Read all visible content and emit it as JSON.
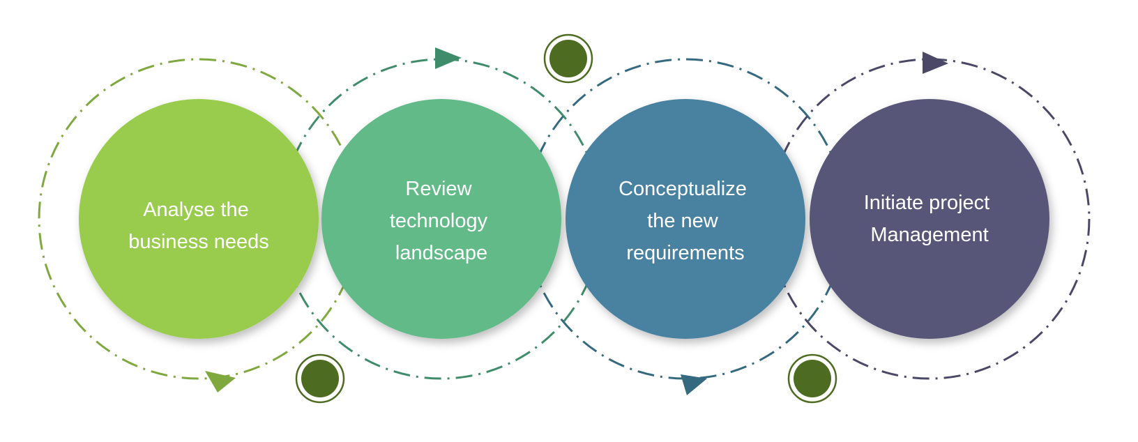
{
  "diagram": {
    "type": "circular-process",
    "steps": [
      {
        "lines": [
          "Analyse the",
          "business needs"
        ],
        "fill_color": "#99CC4D",
        "ring_color": "#7FA83E",
        "arrow_direction": "right"
      },
      {
        "lines": [
          "Review",
          "technology",
          "landscape"
        ],
        "fill_color": "#62BA88",
        "ring_color": "#3F8C6A",
        "arrow_direction": "right"
      },
      {
        "lines": [
          "Conceptualize",
          "the new",
          "requirements"
        ],
        "fill_color": "#4A82A0",
        "ring_color": "#35697F",
        "arrow_direction": "right"
      },
      {
        "lines": [
          "Initiate project",
          "Management"
        ],
        "fill_color": "#595778",
        "ring_color": "#4A4866",
        "arrow_direction": "right"
      }
    ],
    "connector_dot_color": "#4E6B22",
    "connector_dot_count": 3
  }
}
